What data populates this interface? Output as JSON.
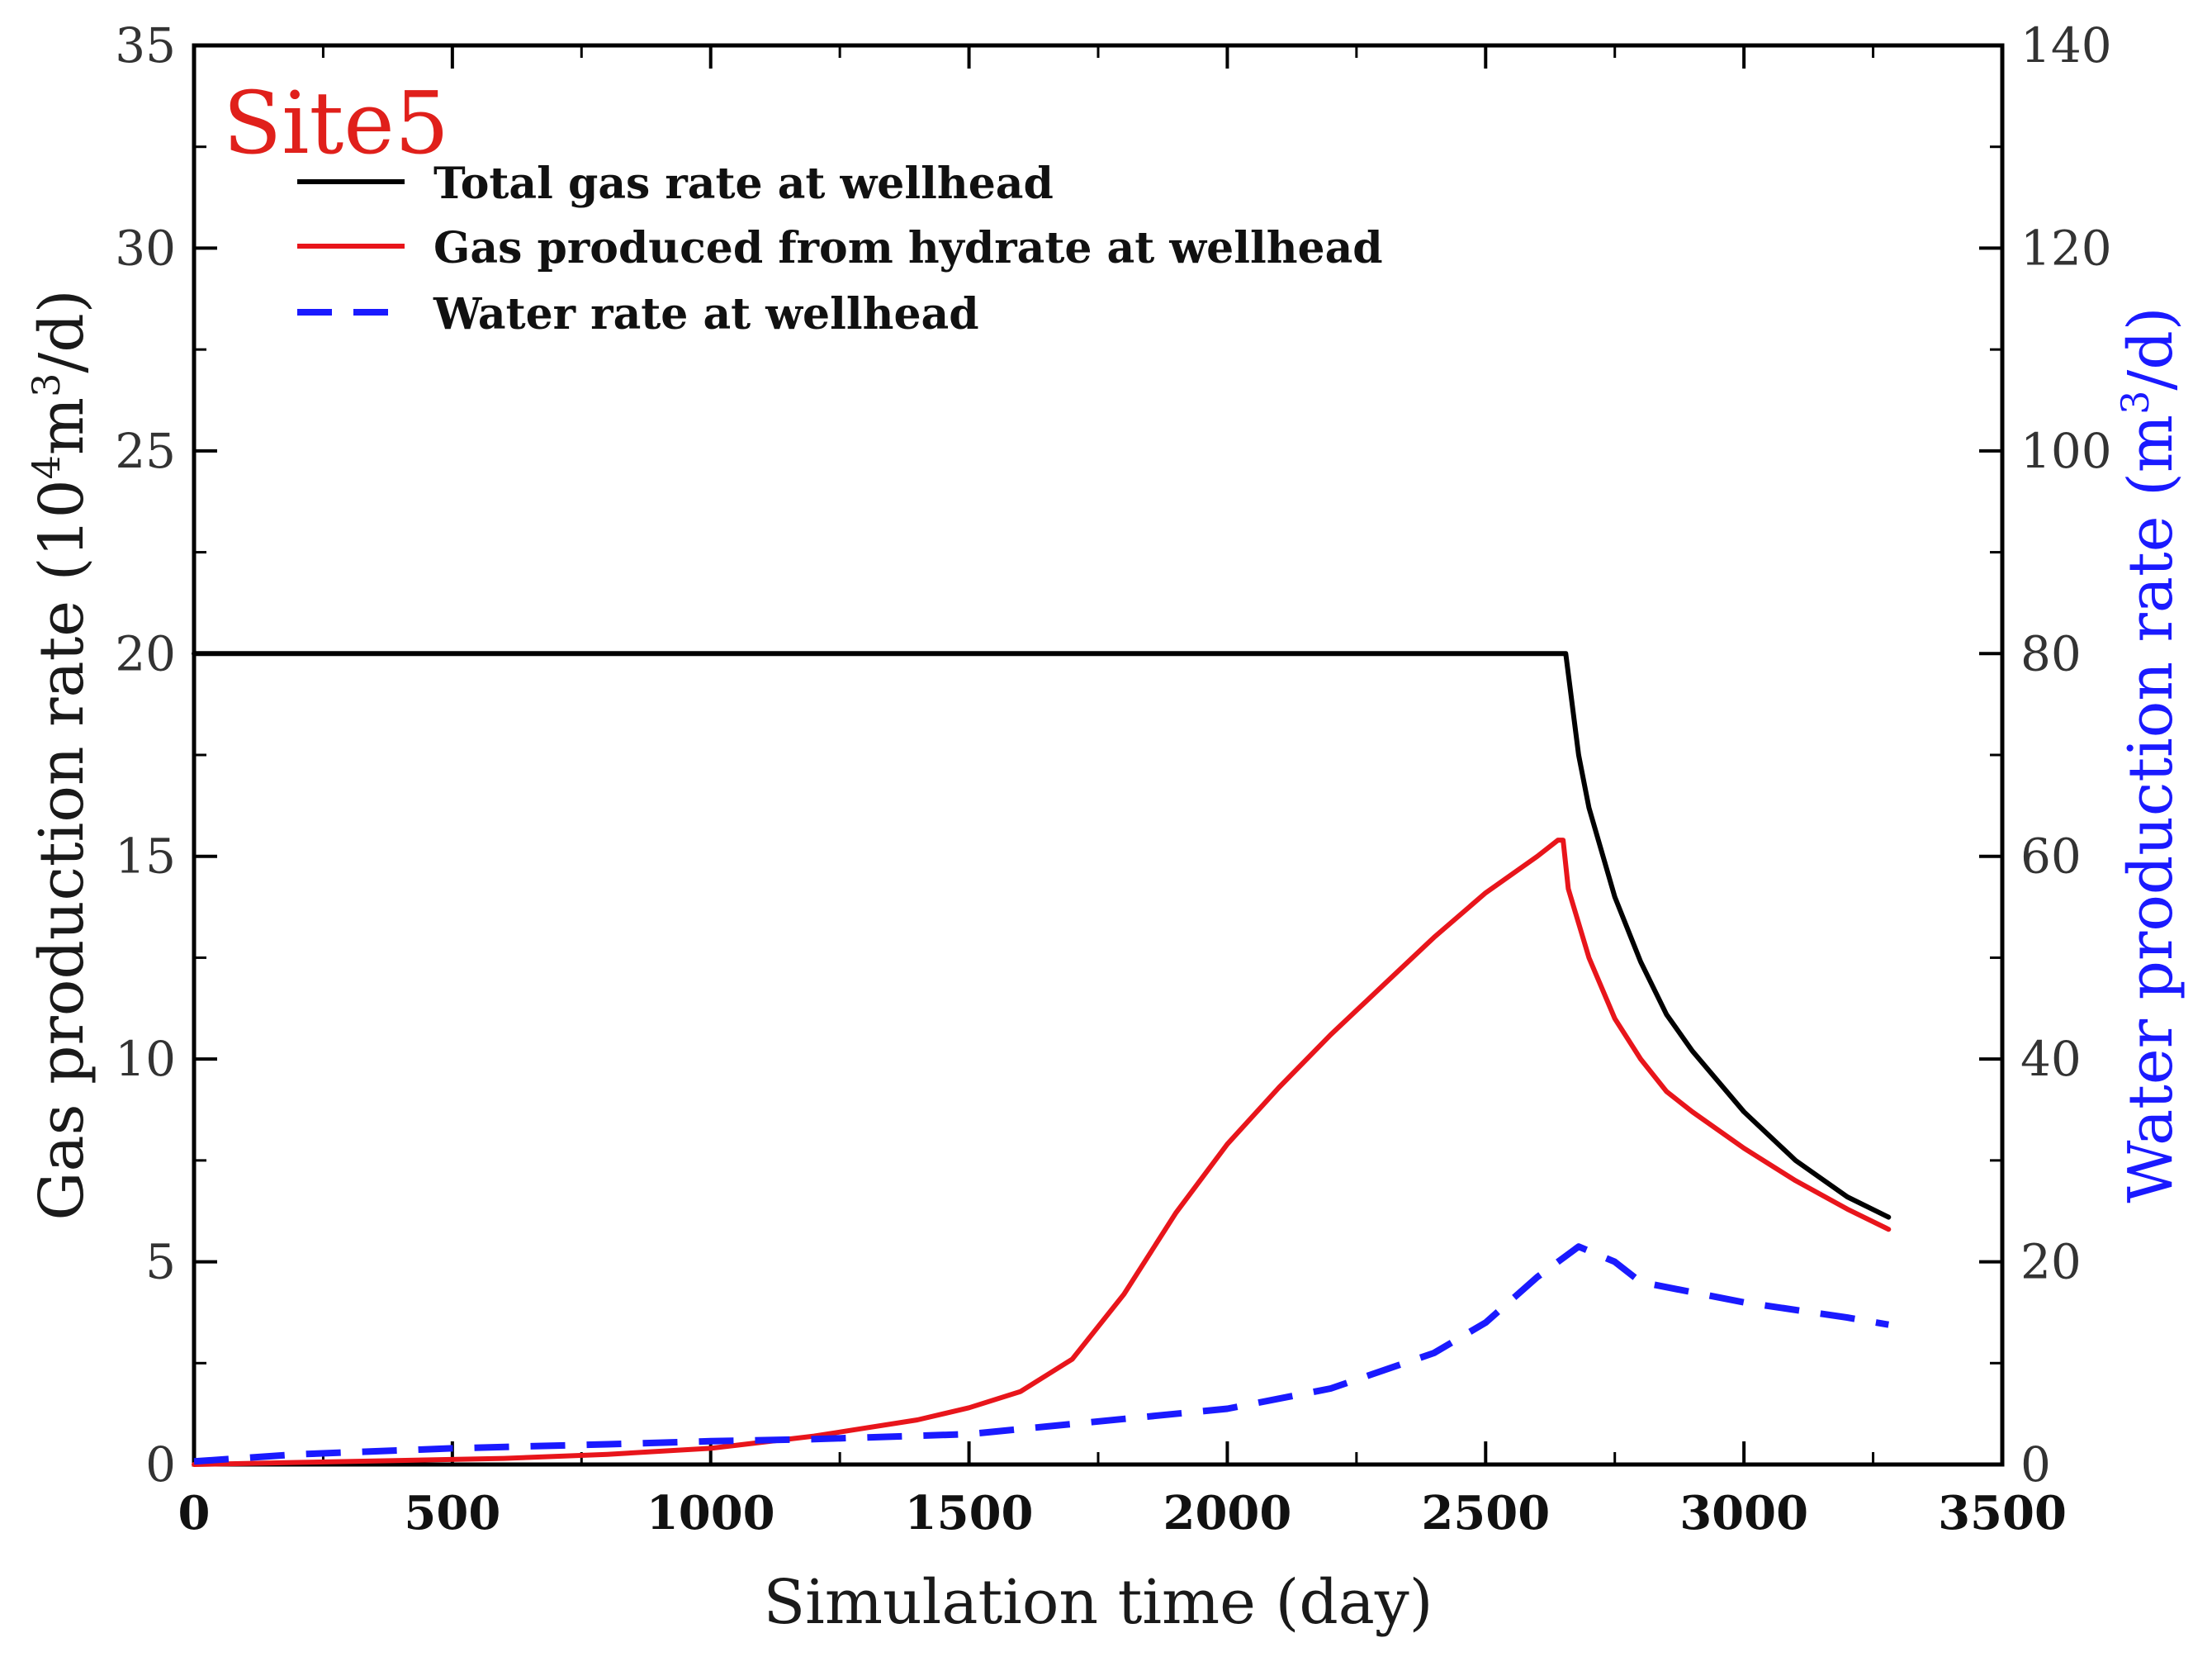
{
  "chart_data": {
    "type": "line",
    "annotation": "Site5",
    "xlabel": "Simulation time  (day)",
    "ylabel_left": {
      "pre": "Gas production rate (10",
      "sup": "4",
      "mid": "m",
      "sup2": "3",
      "post": "/d)"
    },
    "ylabel_right": {
      "pre": "Water production rate (m",
      "sup": "3",
      "post": "/d)"
    },
    "xlim": [
      0,
      3500
    ],
    "ylim_left": [
      0,
      35
    ],
    "ylim_right": [
      0,
      140
    ],
    "x_ticks": [
      "0",
      "500",
      "1000",
      "1500",
      "2000",
      "2500",
      "3000",
      "3500"
    ],
    "y_left_ticks": [
      "0",
      "5",
      "10",
      "15",
      "20",
      "25",
      "30",
      "35"
    ],
    "y_right_ticks": [
      "0",
      "20",
      "40",
      "60",
      "80",
      "100",
      "120",
      "140"
    ],
    "legend_position": "top-left",
    "series": [
      {
        "name": "Total gas rate at wellhead",
        "axis": "left",
        "color": "#000000",
        "style": "solid",
        "x": [
          0,
          2650,
          2655,
          2680,
          2700,
          2750,
          2800,
          2850,
          2900,
          3000,
          3100,
          3200,
          3280
        ],
        "y": [
          20,
          20,
          20,
          17.5,
          16.2,
          14.0,
          12.4,
          11.1,
          10.2,
          8.7,
          7.5,
          6.6,
          6.1
        ]
      },
      {
        "name": "Gas produced from hydrate at wellhead",
        "axis": "left",
        "color": "#e8151b",
        "style": "solid",
        "x": [
          0,
          200,
          400,
          600,
          800,
          1000,
          1200,
          1400,
          1500,
          1600,
          1700,
          1800,
          1900,
          2000,
          2100,
          2200,
          2300,
          2400,
          2500,
          2600,
          2640,
          2650,
          2660,
          2700,
          2750,
          2800,
          2850,
          2900,
          3000,
          3100,
          3200,
          3280
        ],
        "y": [
          0,
          0.05,
          0.1,
          0.15,
          0.25,
          0.4,
          0.7,
          1.1,
          1.4,
          1.8,
          2.6,
          4.2,
          6.2,
          7.9,
          9.3,
          10.6,
          11.8,
          13.0,
          14.1,
          15.0,
          15.4,
          15.4,
          14.2,
          12.5,
          11.0,
          10.0,
          9.2,
          8.7,
          7.8,
          7.0,
          6.3,
          5.8
        ]
      },
      {
        "name": "Water rate at wellhead",
        "axis": "right",
        "color": "#1a1aff",
        "style": "dashed",
        "x": [
          0,
          200,
          500,
          800,
          1000,
          1200,
          1500,
          1800,
          2000,
          2200,
          2400,
          2500,
          2600,
          2680,
          2750,
          2800,
          3000,
          3200,
          3280
        ],
        "y": [
          0.3,
          1.0,
          1.6,
          2.0,
          2.3,
          2.5,
          3.0,
          4.5,
          5.5,
          7.5,
          11.0,
          14.0,
          18.5,
          21.5,
          20.0,
          18.0,
          16.0,
          14.5,
          13.8
        ]
      }
    ]
  }
}
